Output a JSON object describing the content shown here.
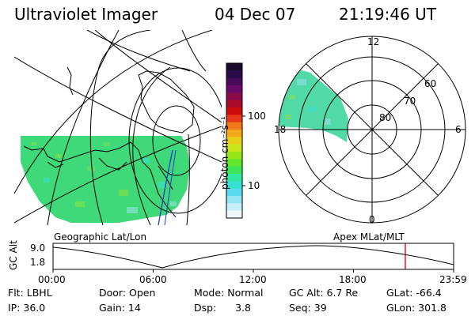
{
  "header": {
    "instrument": "Ultraviolet Imager",
    "date": "04 Dec 07",
    "time": "21:19:46 UT"
  },
  "colorbar": {
    "unit_label": "photon cm⁻²s⁻¹",
    "ticks": [
      "100",
      "10"
    ],
    "colors": [
      "#1a0a2e",
      "#2a0a4a",
      "#4a0a5a",
      "#6a0a6a",
      "#8a0a4a",
      "#aa0a2a",
      "#cc0a0a",
      "#e8361a",
      "#f07a1a",
      "#f5a81a",
      "#e8d01a",
      "#c8e61a",
      "#96e61a",
      "#5ee62a",
      "#3ce65a",
      "#30e8a0",
      "#36e0d2",
      "#5adcf0",
      "#94e4f4",
      "#c8eff8",
      "#eef6fa"
    ]
  },
  "geo_map": {
    "label": "Geographic Lat/Lon",
    "fill_color": "#3fd97a"
  },
  "polar_map": {
    "label": "Apex MLat/MLT",
    "mlt_labels": {
      "top": "12",
      "left": "18",
      "right": "6",
      "bottom": "0"
    },
    "lat_labels": [
      "60",
      "70",
      "80"
    ],
    "fill_color": "#52d9a8"
  },
  "orbit_plot": {
    "ylabel": "GC Alt",
    "y_ticks": [
      "9.0",
      "1.8"
    ],
    "x_ticks": [
      "00:00",
      "06:00",
      "12:00",
      "18:00",
      "23:59"
    ],
    "marker_color": "#cc0000"
  },
  "footer": {
    "filter": "Flt: LBHL",
    "ip": "IP: 36.0",
    "door": "Door: Open",
    "gain": "Gain: 14",
    "mode": "Mode: Normal",
    "dsp": "Dsp:      3.8",
    "gc_alt": "GC Alt: 6.7 Re",
    "seq": "Seq: 39",
    "glat": "GLat: -66.4",
    "glon": "GLon: 301.8"
  }
}
